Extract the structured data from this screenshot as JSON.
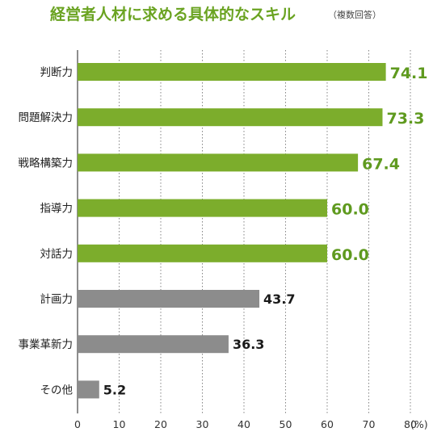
{
  "chart_data": {
    "type": "bar",
    "orientation": "horizontal",
    "title": "経営者人材に求める具体的なスキル",
    "title_note": "（複数回答）",
    "categories": [
      "判断力",
      "問題解決力",
      "戦略構築力",
      "指導力",
      "対話力",
      "計画力",
      "事業革新力",
      "その他"
    ],
    "values": [
      74.1,
      73.3,
      67.4,
      60.0,
      60.0,
      43.7,
      36.3,
      5.2
    ],
    "value_labels": [
      "74.1",
      "73.3",
      "67.4",
      "60.0",
      "60.0",
      "43.7",
      "36.3",
      "5.2"
    ],
    "highlighted": [
      true,
      true,
      true,
      true,
      true,
      false,
      false,
      false
    ],
    "xlim": [
      0,
      80
    ],
    "xticks": [
      0,
      10,
      20,
      30,
      40,
      50,
      60,
      70,
      80
    ],
    "xtick_labels": [
      "0",
      "10",
      "20",
      "30",
      "40",
      "50",
      "60",
      "70",
      "80"
    ],
    "x_unit": "(%)",
    "grid": "vertical-dotted",
    "colors": {
      "highlight": "#7cad2c",
      "highlight_text": "#5f9a1f",
      "normal": "#8c8c8c",
      "normal_text": "#1a1a1a",
      "title": "#6aa321"
    }
  }
}
